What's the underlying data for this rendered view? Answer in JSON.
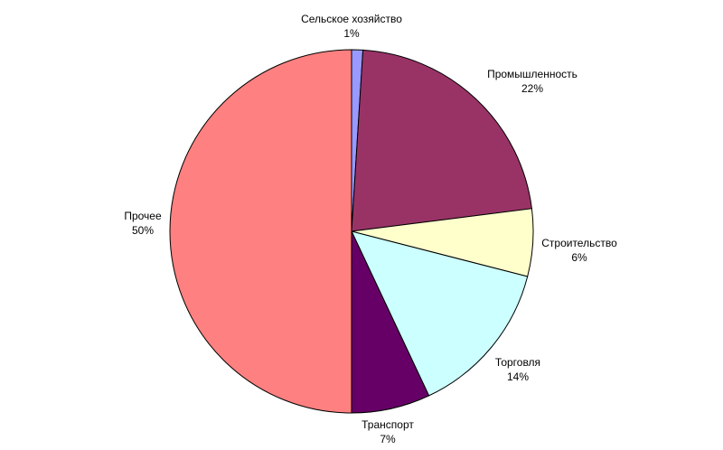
{
  "chart_data": {
    "type": "pie",
    "title": "",
    "slices": [
      {
        "label": "Сельское хозяйство",
        "value": 1,
        "pct_text": "1%",
        "color": "#9999ff"
      },
      {
        "label": "Промышленность",
        "value": 22,
        "pct_text": "22%",
        "color": "#993366"
      },
      {
        "label": "Строительство",
        "value": 6,
        "pct_text": "6%",
        "color": "#ffffcc"
      },
      {
        "label": "Торговля",
        "value": 14,
        "pct_text": "14%",
        "color": "#ccffff"
      },
      {
        "label": "Транспорт",
        "value": 7,
        "pct_text": "7%",
        "color": "#660066"
      },
      {
        "label": "Прочее",
        "value": 50,
        "pct_text": "50%",
        "color": "#ff8080"
      }
    ],
    "legend": "none"
  }
}
